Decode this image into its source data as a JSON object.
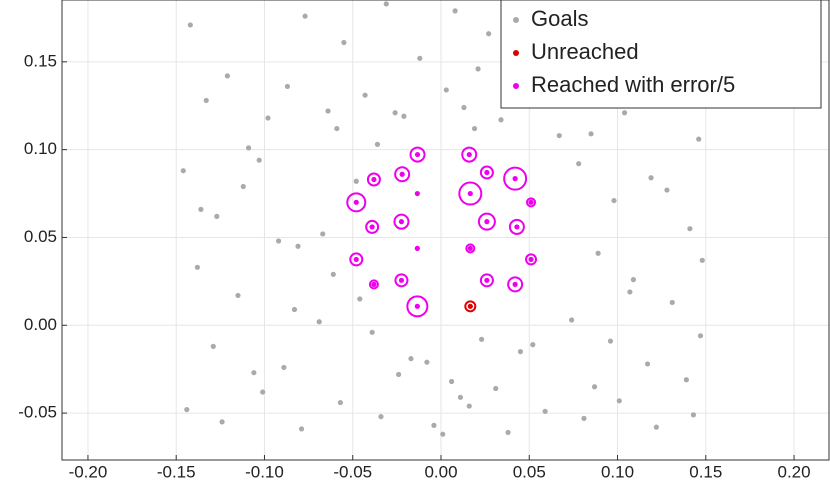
{
  "chart_data": {
    "type": "scatter",
    "xlim": [
      -0.2147,
      0.2198
    ],
    "ylim": [
      -0.0767,
      0.1852
    ],
    "xticks": [
      {
        "value": -0.2,
        "label": "-0.20"
      },
      {
        "value": -0.15,
        "label": "-0.15"
      },
      {
        "value": -0.1,
        "label": "-0.10"
      },
      {
        "value": -0.05,
        "label": "-0.05"
      },
      {
        "value": 0,
        "label": "0.00"
      },
      {
        "value": 0.05,
        "label": "0.05"
      },
      {
        "value": 0.1,
        "label": "0.10"
      },
      {
        "value": 0.15,
        "label": "0.15"
      },
      {
        "value": 0.2,
        "label": "0.20"
      }
    ],
    "yticks": [
      {
        "value": -0.05,
        "label": "-0.05"
      },
      {
        "value": 0,
        "label": "0.00"
      },
      {
        "value": 0.05,
        "label": "0.05"
      },
      {
        "value": 0.1,
        "label": "0.10"
      },
      {
        "value": 0.15,
        "label": "0.15"
      }
    ],
    "grid": true,
    "legend": "upper right",
    "series": [
      {
        "name": "Goals",
        "color": "#aaaaaa",
        "x": [
          -0.142,
          -0.121,
          -0.098,
          -0.077,
          -0.055,
          -0.031,
          -0.012,
          0.008,
          0.027,
          0.049,
          0.071,
          0.093,
          0.114,
          0.137,
          -0.133,
          -0.109,
          -0.087,
          -0.064,
          -0.043,
          -0.021,
          0.003,
          0.019,
          0.041,
          0.062,
          0.085,
          0.104,
          0.126,
          0.146,
          -0.146,
          -0.127,
          -0.103,
          -0.081,
          -0.059,
          -0.036,
          -0.008,
          0.013,
          0.034,
          0.056,
          0.078,
          0.098,
          0.119,
          0.141,
          -0.138,
          -0.115,
          -0.092,
          -0.069,
          -0.048,
          -0.026,
          0.006,
          0.023,
          0.045,
          0.067,
          0.089,
          0.109,
          0.131,
          0.148,
          -0.129,
          -0.106,
          -0.083,
          -0.061,
          -0.039,
          -0.017,
          0.011,
          0.031,
          0.052,
          0.074,
          0.096,
          0.117,
          0.139,
          0.147,
          -0.144,
          -0.124,
          -0.101,
          -0.079,
          -0.057,
          -0.034,
          -0.004,
          0.016,
          0.038,
          0.059,
          0.081,
          0.101,
          0.122,
          0.143,
          -0.136,
          -0.112,
          -0.089,
          -0.067,
          -0.046,
          -0.024,
          0.001,
          0.021,
          0.043,
          0.064,
          0.087,
          0.107,
          0.128,
          0.146
        ],
        "values": [
          0.171,
          0.142,
          0.118,
          0.176,
          0.161,
          0.183,
          0.152,
          0.179,
          0.166,
          0.174,
          0.148,
          0.181,
          0.163,
          0.155,
          0.128,
          0.101,
          0.136,
          0.122,
          0.131,
          0.119,
          0.134,
          0.112,
          0.127,
          0.138,
          0.109,
          0.121,
          0.132,
          0.106,
          0.088,
          0.062,
          0.094,
          0.045,
          0.112,
          0.103,
          -0.021,
          0.124,
          0.117,
          0.129,
          0.092,
          0.071,
          0.084,
          0.055,
          0.033,
          0.017,
          0.048,
          0.002,
          0.082,
          0.121,
          -0.032,
          -0.008,
          -0.015,
          0.108,
          0.041,
          0.026,
          0.013,
          0.037,
          -0.012,
          -0.027,
          0.009,
          0.029,
          -0.004,
          -0.019,
          -0.041,
          -0.036,
          -0.011,
          0.003,
          -0.009,
          -0.022,
          -0.031,
          -0.006,
          -0.048,
          -0.055,
          -0.038,
          -0.059,
          -0.044,
          -0.052,
          -0.057,
          -0.046,
          -0.061,
          -0.049,
          -0.053,
          -0.043,
          -0.058,
          -0.051,
          0.066,
          0.079,
          -0.024,
          0.052,
          0.015,
          -0.028,
          -0.062,
          0.146,
          0.168,
          0.156,
          -0.035,
          0.019,
          0.077,
          0.144
        ]
      },
      {
        "name": "Unreached",
        "color": "#dd0000",
        "x": [
          0.0166
        ],
        "values": [
          0.0108
        ],
        "sizes": [
          5
        ]
      },
      {
        "name": "Reached with error/5",
        "color": "#ee00ee",
        "x": [
          -0.0133,
          0.016,
          -0.038,
          -0.022,
          0.026,
          0.042,
          -0.0134,
          0.0166,
          -0.048,
          0.051,
          -0.0224,
          -0.039,
          0.026,
          0.043,
          0.0166,
          -0.0134,
          -0.048,
          0.051,
          -0.0224,
          0.026,
          -0.038,
          0.042,
          -0.0134
        ],
        "values": [
          0.0972,
          0.0972,
          0.083,
          0.086,
          0.087,
          0.0835,
          0.075,
          0.075,
          0.07,
          0.07,
          0.059,
          0.056,
          0.059,
          0.056,
          0.0438,
          0.0438,
          0.0375,
          0.0375,
          0.0256,
          0.0256,
          0.0233,
          0.0233,
          0.0108
        ],
        "sizes": [
          7,
          7,
          6,
          7,
          6,
          11,
          0,
          11,
          9,
          4,
          7,
          6,
          8,
          7,
          4,
          0,
          6,
          5,
          6,
          6,
          4,
          7,
          10
        ]
      }
    ]
  }
}
